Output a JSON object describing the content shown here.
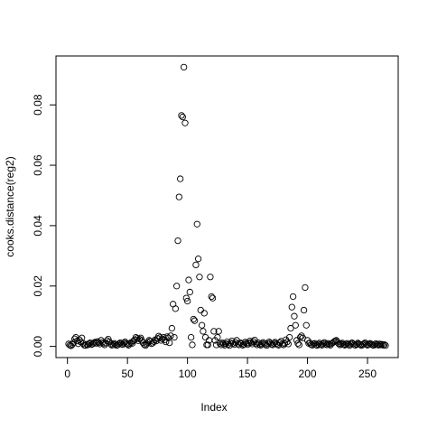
{
  "chart_data": {
    "type": "scatter",
    "xlabel": "Index",
    "ylabel": "cooks.distance(reg2)",
    "xlim": [
      -9.56,
      275.56
    ],
    "ylim": [
      -0.0037,
      0.0962
    ],
    "xticks": [
      0,
      50,
      100,
      150,
      200,
      250
    ],
    "yticks": [
      {
        "value": 0,
        "label": "0.00"
      },
      {
        "value": 0.02,
        "label": "0.02"
      },
      {
        "value": 0.04,
        "label": "0.04"
      },
      {
        "value": 0.06,
        "label": "0.06"
      },
      {
        "value": 0.08,
        "label": "0.08"
      }
    ],
    "color": "#000000",
    "x": [
      1,
      2,
      3,
      4,
      5,
      6,
      7,
      8,
      9,
      10,
      11,
      12,
      13,
      14,
      15,
      16,
      17,
      18,
      19,
      20,
      21,
      22,
      23,
      24,
      25,
      26,
      27,
      28,
      29,
      30,
      31,
      32,
      33,
      34,
      35,
      36,
      37,
      38,
      39,
      40,
      41,
      42,
      43,
      44,
      45,
      46,
      47,
      48,
      49,
      50,
      51,
      52,
      53,
      54,
      55,
      56,
      57,
      58,
      59,
      60,
      61,
      62,
      63,
      64,
      65,
      66,
      67,
      68,
      69,
      70,
      71,
      72,
      73,
      74,
      75,
      76,
      77,
      78,
      79,
      80,
      81,
      82,
      83,
      84,
      85,
      86,
      87,
      88,
      89,
      90,
      91,
      92,
      93,
      94,
      95,
      96,
      97,
      98,
      99,
      100,
      101,
      102,
      103,
      104,
      105,
      106,
      107,
      108,
      109,
      110,
      111,
      112,
      113,
      114,
      115,
      116,
      117,
      118,
      119,
      120,
      121,
      122,
      123,
      124,
      125,
      126,
      127,
      128,
      129,
      130,
      131,
      132,
      133,
      134,
      135,
      136,
      137,
      138,
      139,
      140,
      141,
      142,
      143,
      144,
      145,
      146,
      147,
      148,
      149,
      150,
      151,
      152,
      153,
      154,
      155,
      156,
      157,
      158,
      159,
      160,
      161,
      162,
      163,
      164,
      165,
      166,
      167,
      168,
      169,
      170,
      171,
      172,
      173,
      174,
      175,
      176,
      177,
      178,
      179,
      180,
      181,
      182,
      183,
      184,
      185,
      186,
      187,
      188,
      189,
      190,
      191,
      192,
      193,
      194,
      195,
      196,
      197,
      198,
      199,
      200,
      201,
      202,
      203,
      204,
      205,
      206,
      207,
      208,
      209,
      210,
      211,
      212,
      213,
      214,
      215,
      216,
      217,
      218,
      219,
      220,
      221,
      222,
      223,
      224,
      225,
      226,
      227,
      228,
      229,
      230,
      231,
      232,
      233,
      234,
      235,
      236,
      237,
      238,
      239,
      240,
      241,
      242,
      243,
      244,
      245,
      246,
      247,
      248,
      249,
      250,
      251,
      252,
      253,
      254,
      255,
      256,
      257,
      258,
      259,
      260,
      261,
      262,
      263,
      264,
      265
    ],
    "values": [
      0.0008,
      0.0004,
      0.0002,
      0.0006,
      0.0012,
      0.0025,
      0.003,
      0.0018,
      0.0009,
      0.0022,
      0.0015,
      0.0028,
      0.001,
      0.0004,
      0.0003,
      0.0007,
      0.0005,
      0.0009,
      0.0012,
      0.0006,
      0.0008,
      0.0011,
      0.0014,
      0.001,
      0.0016,
      0.0012,
      0.0008,
      0.002,
      0.0013,
      0.0009,
      0.0005,
      0.0011,
      0.0019,
      0.0024,
      0.0015,
      0.0008,
      0.0004,
      0.0006,
      0.001,
      0.0007,
      0.0003,
      0.0005,
      0.0009,
      0.0012,
      0.0008,
      0.0006,
      0.0011,
      0.0015,
      0.001,
      0.0007,
      0.0004,
      0.0009,
      0.0013,
      0.001,
      0.0018,
      0.0022,
      0.003,
      0.0026,
      0.0019,
      0.0024,
      0.0028,
      0.002,
      0.0012,
      0.0006,
      0.0003,
      0.0008,
      0.0013,
      0.002,
      0.0017,
      0.0009,
      0.0011,
      0.0016,
      0.0022,
      0.0018,
      0.0026,
      0.0034,
      0.0029,
      0.002,
      0.0025,
      0.003,
      0.0022,
      0.0015,
      0.0032,
      0.0028,
      0.0012,
      0.0035,
      0.006,
      0.014,
      0.003,
      0.0125,
      0.02,
      0.035,
      0.0495,
      0.0555,
      0.0765,
      0.076,
      0.0925,
      0.074,
      0.016,
      0.015,
      0.022,
      0.018,
      0.003,
      0.0005,
      0.009,
      0.0085,
      0.027,
      0.0405,
      0.029,
      0.023,
      0.012,
      0.007,
      0.005,
      0.011,
      0.003,
      0.0005,
      0.0005,
      0.002,
      0.023,
      0.0165,
      0.016,
      0.005,
      0.002,
      0.0005,
      0.003,
      0.005,
      0.001,
      0.0005,
      0.0012,
      0.0008,
      0.0004,
      0.0009,
      0.0015,
      0.0007,
      0.0003,
      0.0011,
      0.0018,
      0.001,
      0.0006,
      0.0013,
      0.002,
      0.0008,
      0.0005,
      0.0012,
      0.0009,
      0.0004,
      0.0007,
      0.0014,
      0.001,
      0.0006,
      0.0011,
      0.0018,
      0.0013,
      0.0008,
      0.0016,
      0.0021,
      0.0009,
      0.0005,
      0.0012,
      0.0007,
      0.0004,
      0.0008,
      0.0013,
      0.001,
      0.0006,
      0.0003,
      0.0009,
      0.0015,
      0.0011,
      0.0007,
      0.0005,
      0.001,
      0.0014,
      0.0009,
      0.0006,
      0.0004,
      0.0012,
      0.0017,
      0.0008,
      0.0005,
      0.001,
      0.0022,
      0.0015,
      0.0008,
      0.003,
      0.006,
      0.013,
      0.0165,
      0.01,
      0.007,
      0.002,
      0.001,
      0.0005,
      0.003,
      0.0035,
      0.0028,
      0.012,
      0.0195,
      0.007,
      0.002,
      0.001,
      0.0012,
      0.0006,
      0.0004,
      0.0008,
      0.001,
      0.0005,
      0.0003,
      0.0007,
      0.0011,
      0.0006,
      0.0004,
      0.0009,
      0.0013,
      0.0008,
      0.0005,
      0.001,
      0.0007,
      0.0004,
      0.0009,
      0.0012,
      0.0015,
      0.0018,
      0.002,
      0.0014,
      0.0009,
      0.0005,
      0.0008,
      0.0011,
      0.0006,
      0.0004,
      0.0007,
      0.001,
      0.0006,
      0.0003,
      0.0008,
      0.0012,
      0.0009,
      0.0005,
      0.0004,
      0.0007,
      0.0011,
      0.0008,
      0.0005,
      0.0003,
      0.0006,
      0.0009,
      0.0012,
      0.0007,
      0.0004,
      0.0006,
      0.001,
      0.0008,
      0.0005,
      0.0003,
      0.0007,
      0.0009,
      0.0006,
      0.0004,
      0.0008,
      0.0005,
      0.0007,
      0.0004,
      0.0006,
      0.0003
    ]
  }
}
